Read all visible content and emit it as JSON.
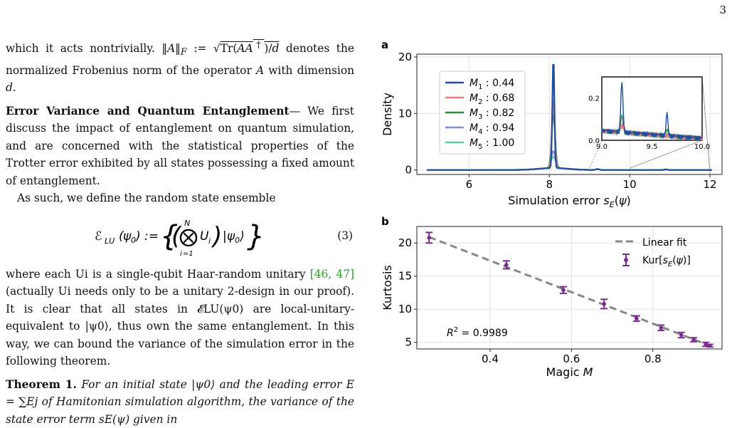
{
  "page_number": "3",
  "left_text": {
    "p1": "which it acts nontrivially. ‖A‖F := √(Tr(AA†)/d) denotes the normalized Frobenius norm of the operator A with dimension d.",
    "p2_head": "Error Variance and Quantum Entanglement",
    "p2_body": "— We first discuss the impact of entanglement on quantum simulation, and are concerned with the statistical properties of the Trotter error exhibited by all states possessing a fixed amount of entanglement.",
    "p3": "As such, we define the random state ensemble",
    "eq": "𝓔LU(ψ0) := { ( ⊗i=1N Ui ) |ψ0⟩ }",
    "eq_number": "(3)",
    "p4_a": "where each Ui is a single-qubit Haar-random unitary ",
    "p4_cite": "[46, 47]",
    "p4_b": "(actually Ui needs only to be a unitary 2-design in our proof). It is clear that all states in 𝓔LU(ψ0) are local-unitary-equivalent to |ψ0⟩, thus own the same entanglement. In this way, we can bound the variance of the simulation error in the following theorem.",
    "thm_head": "Theorem 1.",
    "thm_body": " For an initial state |ψ0⟩ and the leading error E = ∑Ej of Hamitonian simulation algorithm, the variance of the state error term sE(ψ) given in"
  },
  "chart_data": [
    {
      "type": "line",
      "panel_label": "a",
      "xlabel": "Simulation error sE(ψ)",
      "ylabel": "Density",
      "xlim": [
        4.7,
        12.3
      ],
      "ylim": [
        -0.8,
        20.5
      ],
      "xticks": [
        6,
        8,
        10,
        12
      ],
      "yticks": [
        0,
        10,
        20
      ],
      "grid": true,
      "legend_position": "upper-left",
      "series": [
        {
          "name": "M1 : 0.44",
          "color": "#1f4e9c",
          "peak_x": 8.1,
          "peak_y": 19.8
        },
        {
          "name": "M2 : 0.68",
          "color": "#ee7b7b",
          "peak_x": 8.1,
          "peak_y": 12.4
        },
        {
          "name": "M3 : 0.82",
          "color": "#2e8b3e",
          "peak_x": 8.1,
          "peak_y": 9.7
        },
        {
          "name": "M4 : 0.94",
          "color": "#7f8fd0",
          "peak_x": 8.1,
          "peak_y": 3.0
        },
        {
          "name": "M5 : 1.00",
          "color": "#5fc7a0",
          "peak_x": 8.1,
          "peak_y": 2.0
        }
      ],
      "inset": {
        "xlim": [
          9.0,
          10.0
        ],
        "ylim": [
          0.0,
          0.3
        ],
        "xticks": [
          "9.0",
          "9.5",
          "10.0"
        ],
        "yticks": [
          "0.0",
          "0.2"
        ],
        "peaks": [
          {
            "x": 9.2,
            "y": 0.27,
            "series": "M1 : 0.44"
          },
          {
            "x": 9.65,
            "y": 0.13,
            "series": "M1 : 0.44"
          }
        ]
      }
    },
    {
      "type": "scatter",
      "panel_label": "b",
      "xlabel": "Magic M",
      "ylabel": "Kurtosis",
      "xlim": [
        0.22,
        0.97
      ],
      "ylim": [
        4.0,
        22.5
      ],
      "xticks": [
        0.4,
        0.6,
        0.8
      ],
      "yticks": [
        5,
        10,
        15,
        20
      ],
      "grid": true,
      "legend_position": "upper-right",
      "annotation": "R² = 0.9989",
      "series": [
        {
          "name": "Kur[sE(ψ)]",
          "color": "#7b2d8e",
          "points": [
            {
              "x": 0.25,
              "y": 20.8,
              "err": 0.8
            },
            {
              "x": 0.44,
              "y": 16.7,
              "err": 0.6
            },
            {
              "x": 0.58,
              "y": 12.9,
              "err": 0.5
            },
            {
              "x": 0.68,
              "y": 10.8,
              "err": 0.7
            },
            {
              "x": 0.76,
              "y": 8.6,
              "err": 0.4
            },
            {
              "x": 0.82,
              "y": 7.2,
              "err": 0.4
            },
            {
              "x": 0.87,
              "y": 6.1,
              "err": 0.4
            },
            {
              "x": 0.9,
              "y": 5.4,
              "err": 0.3
            },
            {
              "x": 0.93,
              "y": 4.7,
              "err": 0.3
            },
            {
              "x": 0.94,
              "y": 4.5,
              "err": 0.2
            }
          ]
        },
        {
          "name": "Linear fit",
          "color": "#888888",
          "line": {
            "x0": 0.25,
            "y0": 20.9,
            "x1": 0.94,
            "y1": 4.5
          }
        }
      ]
    }
  ]
}
